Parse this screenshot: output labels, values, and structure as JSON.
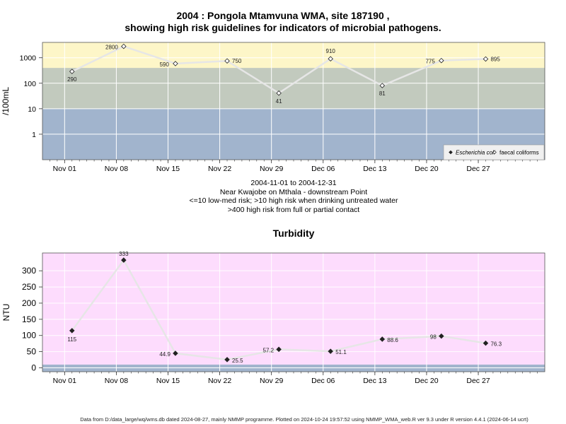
{
  "titles": {
    "line1": "2004 : Pongola Mtamvuna WMA, site 187190 ,",
    "line2": "showing high risk guidelines for indicators of microbial pathogens."
  },
  "captions": [
    "2004-11-01 to 2004-12-31",
    "Near Kwajobe on Mthala - downstream Point",
    "<=10 low-med risk; >10 high risk when drinking untreated water",
    ">400 high risk from full or partial contact"
  ],
  "footer": "Data from D:/data_large/wq/wms.db dated 2024-08-27, mainly NMMP programme. Plotted on 2024-10-24 19:57:52 using NMMP_WMA_web.R ver 9.3 under R version 4.4.1 (2024-06-14 ucrt)",
  "colors": {
    "low_band": "#a1b4cd",
    "mid_band": "#c2cabe",
    "high_band": "#fdf6c8",
    "turbidity_bg": "#fddcfd",
    "turbidity_low_band": "#a1b4cd",
    "line": "#e6e6e6",
    "grid": "#ffffff"
  },
  "chart_data": [
    {
      "type": "line",
      "ylabel": "/100mL",
      "yscale": "log",
      "x_range": [
        "2004-10-29",
        "2005-01-05"
      ],
      "ylim": [
        0.1,
        4000
      ],
      "yticks": [
        1,
        10,
        100,
        1000
      ],
      "x_ticks": [
        {
          "date": "2004-11-01",
          "label": "Nov 01"
        },
        {
          "date": "2004-11-08",
          "label": "Nov 08"
        },
        {
          "date": "2004-11-15",
          "label": "Nov 15"
        },
        {
          "date": "2004-11-22",
          "label": "Nov 22"
        },
        {
          "date": "2004-11-29",
          "label": "Nov 29"
        },
        {
          "date": "2004-12-06",
          "label": "Dec 06"
        },
        {
          "date": "2004-12-13",
          "label": "Dec 13"
        },
        {
          "date": "2004-12-20",
          "label": "Dec 20"
        },
        {
          "date": "2004-12-27",
          "label": "Dec 27"
        }
      ],
      "risk_bands": [
        {
          "from": 0.1,
          "to": 10,
          "color": "#a1b4cd"
        },
        {
          "from": 10,
          "to": 400,
          "color": "#c2cabe"
        },
        {
          "from": 400,
          "to": 4000,
          "color": "#fdf6c8"
        }
      ],
      "legend_position": "bottom-right",
      "series": [
        {
          "name": "Escherichia coli",
          "marker": "filled-diamond",
          "x": [],
          "y": []
        },
        {
          "name": "faecal coliforms",
          "marker": "open-diamond",
          "x": [
            "2004-11-02",
            "2004-11-09",
            "2004-11-16",
            "2004-11-23",
            "2004-11-30",
            "2004-12-07",
            "2004-12-14",
            "2004-12-22",
            "2004-12-28"
          ],
          "y": [
            290,
            2800,
            590,
            750,
            41,
            910,
            81,
            775,
            895
          ],
          "labels": [
            "290",
            "2800",
            "590",
            "750",
            "41",
            "910",
            "81",
            "775",
            "895"
          ]
        }
      ]
    },
    {
      "type": "line",
      "title": "Turbidity",
      "ylabel": "NTU",
      "x_range": [
        "2004-10-29",
        "2005-01-05"
      ],
      "ylim": [
        -12,
        355
      ],
      "yticks": [
        0,
        50,
        100,
        150,
        200,
        250,
        300
      ],
      "low_band": [
        -12,
        10
      ],
      "x_ticks": [
        {
          "date": "2004-11-01",
          "label": "Nov 01"
        },
        {
          "date": "2004-11-08",
          "label": "Nov 08"
        },
        {
          "date": "2004-11-15",
          "label": "Nov 15"
        },
        {
          "date": "2004-11-22",
          "label": "Nov 22"
        },
        {
          "date": "2004-11-29",
          "label": "Nov 29"
        },
        {
          "date": "2004-12-06",
          "label": "Dec 06"
        },
        {
          "date": "2004-12-13",
          "label": "Dec 13"
        },
        {
          "date": "2004-12-20",
          "label": "Dec 20"
        },
        {
          "date": "2004-12-27",
          "label": "Dec 27"
        }
      ],
      "series": [
        {
          "marker": "filled-diamond",
          "x": [
            "2004-11-02",
            "2004-11-09",
            "2004-11-16",
            "2004-11-23",
            "2004-11-30",
            "2004-12-07",
            "2004-12-14",
            "2004-12-22",
            "2004-12-28"
          ],
          "y": [
            115,
            333,
            44.9,
            25.5,
            57.2,
            51.1,
            88.6,
            98,
            76.3
          ],
          "labels": [
            "115",
            "333",
            "44.9",
            "25.5",
            "57.2",
            "51.1",
            "88.6",
            "98",
            "76.3"
          ]
        }
      ]
    }
  ]
}
